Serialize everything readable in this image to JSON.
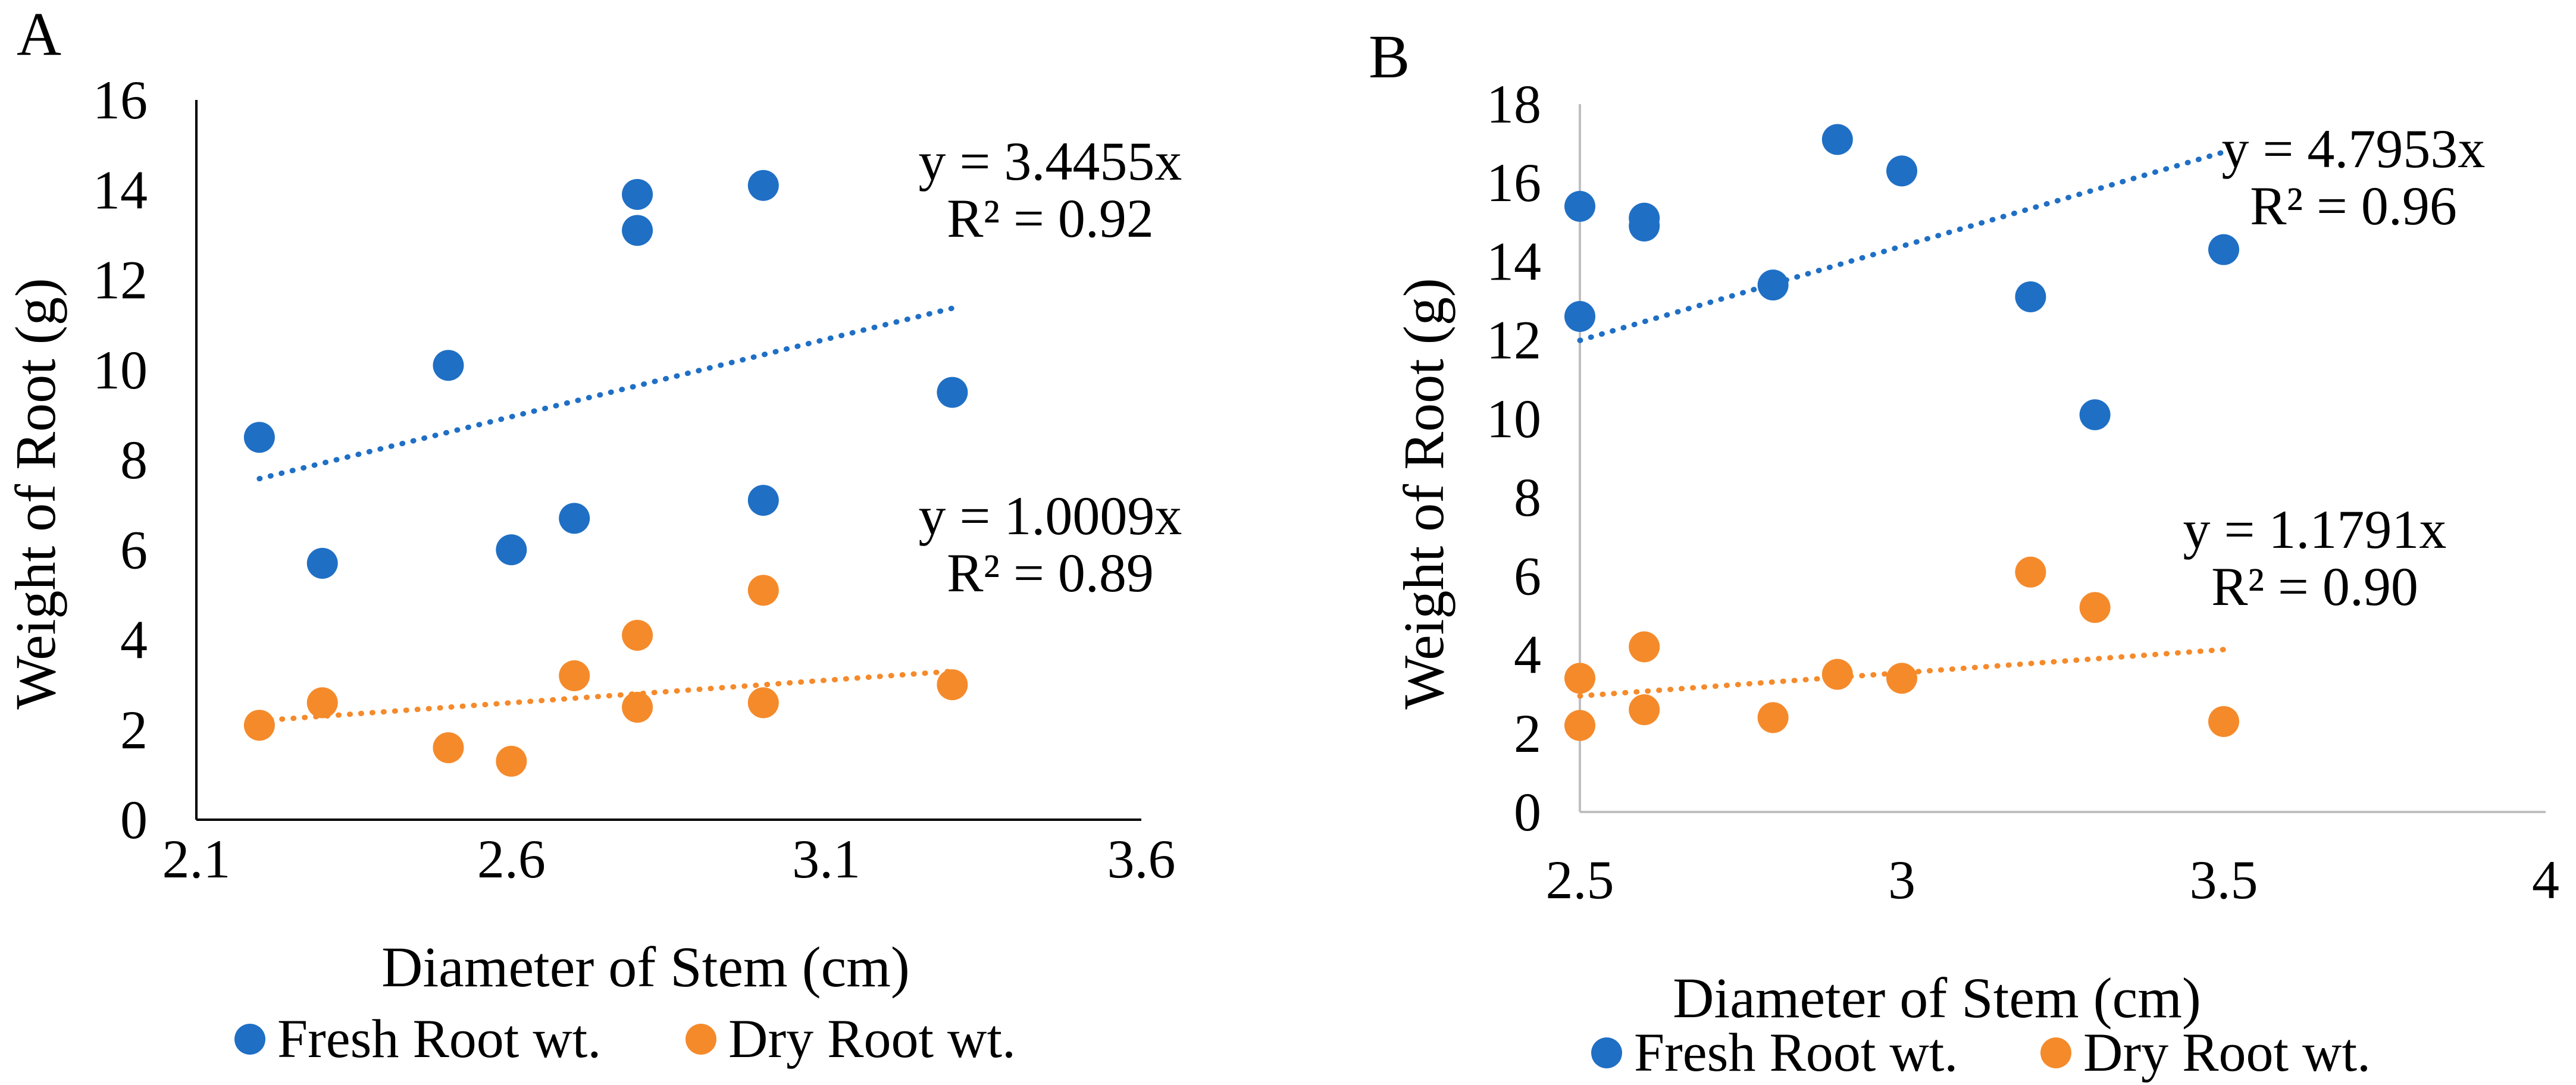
{
  "chart_data": [
    {
      "panel": "A",
      "type": "scatter",
      "xlabel": "Diameter of Stem (cm)",
      "ylabel": "Weight of Root (g)",
      "xlim": [
        2.1,
        3.6
      ],
      "ylim": [
        0,
        16
      ],
      "xticks": [
        2.1,
        2.6,
        3.1,
        3.6
      ],
      "xtick_labels": [
        "2.1",
        "2.6",
        "3.1",
        "3.6"
      ],
      "yticks": [
        0,
        2,
        4,
        6,
        8,
        10,
        12,
        14,
        16
      ],
      "ytick_labels": [
        "0",
        "2",
        "4",
        "6",
        "8",
        "10",
        "12",
        "14",
        "16"
      ],
      "grid": false,
      "legend_position": "bottom",
      "series": [
        {
          "name": "Fresh Root wt.",
          "color": "#1F6FC5",
          "points": [
            [
              2.2,
              8.5
            ],
            [
              2.3,
              5.7
            ],
            [
              2.5,
              10.1
            ],
            [
              2.6,
              6.0
            ],
            [
              2.7,
              6.7
            ],
            [
              2.8,
              13.1
            ],
            [
              2.8,
              13.9
            ],
            [
              3.0,
              14.1
            ],
            [
              3.0,
              7.1
            ],
            [
              3.3,
              9.5
            ]
          ],
          "trendline": {
            "x": [
              2.2,
              3.3
            ],
            "y": [
              7.58,
              11.37
            ]
          },
          "equation": "y = 3.4455x",
          "r2": "R² = 0.92"
        },
        {
          "name": "Dry Root wt.",
          "color": "#F58A2B",
          "points": [
            [
              2.2,
              2.1
            ],
            [
              2.3,
              2.6
            ],
            [
              2.5,
              1.6
            ],
            [
              2.6,
              1.3
            ],
            [
              2.7,
              3.2
            ],
            [
              2.8,
              4.1
            ],
            [
              2.8,
              2.5
            ],
            [
              3.0,
              5.1
            ],
            [
              3.0,
              2.6
            ],
            [
              3.3,
              3.0
            ]
          ],
          "trendline": {
            "x": [
              2.2,
              3.3
            ],
            "y": [
              2.2,
              3.3
            ]
          },
          "equation": "y = 1.0009x",
          "r2": "R² = 0.89"
        }
      ]
    },
    {
      "panel": "B",
      "type": "scatter",
      "xlabel": "Diameter of Stem (cm)",
      "ylabel": "Weight of Root (g)",
      "xlim": [
        2.5,
        4
      ],
      "ylim": [
        0,
        18
      ],
      "xticks": [
        2.5,
        3,
        3.5,
        4
      ],
      "xtick_labels": [
        "2.5",
        "3",
        "3.5",
        "4"
      ],
      "yticks": [
        0,
        2,
        4,
        6,
        8,
        10,
        12,
        14,
        16,
        18
      ],
      "ytick_labels": [
        "0",
        "2",
        "4",
        "6",
        "8",
        "10",
        "12",
        "14",
        "16",
        "18"
      ],
      "grid": false,
      "legend_position": "bottom",
      "series": [
        {
          "name": "Fresh Root wt.",
          "color": "#1F6FC5",
          "points": [
            [
              2.5,
              15.4
            ],
            [
              2.5,
              12.6
            ],
            [
              2.6,
              15.1
            ],
            [
              2.6,
              14.9
            ],
            [
              2.8,
              13.4
            ],
            [
              2.9,
              17.1
            ],
            [
              3.0,
              16.3
            ],
            [
              3.2,
              13.1
            ],
            [
              3.3,
              10.1
            ],
            [
              3.5,
              14.3
            ]
          ],
          "trendline": {
            "x": [
              2.5,
              3.5
            ],
            "y": [
              11.99,
              16.78
            ]
          },
          "equation": "y = 4.7953x",
          "r2": "R² = 0.96"
        },
        {
          "name": "Dry Root wt.",
          "color": "#F58A2B",
          "points": [
            [
              2.5,
              3.4
            ],
            [
              2.5,
              2.2
            ],
            [
              2.6,
              4.2
            ],
            [
              2.6,
              2.6
            ],
            [
              2.8,
              2.4
            ],
            [
              2.9,
              3.5
            ],
            [
              3.0,
              3.4
            ],
            [
              3.2,
              6.1
            ],
            [
              3.3,
              5.2
            ],
            [
              3.5,
              2.3
            ]
          ],
          "trendline": {
            "x": [
              2.5,
              3.5
            ],
            "y": [
              2.95,
              4.13
            ]
          },
          "equation": "y = 1.1791x",
          "r2": "R² = 0.90"
        }
      ]
    }
  ]
}
